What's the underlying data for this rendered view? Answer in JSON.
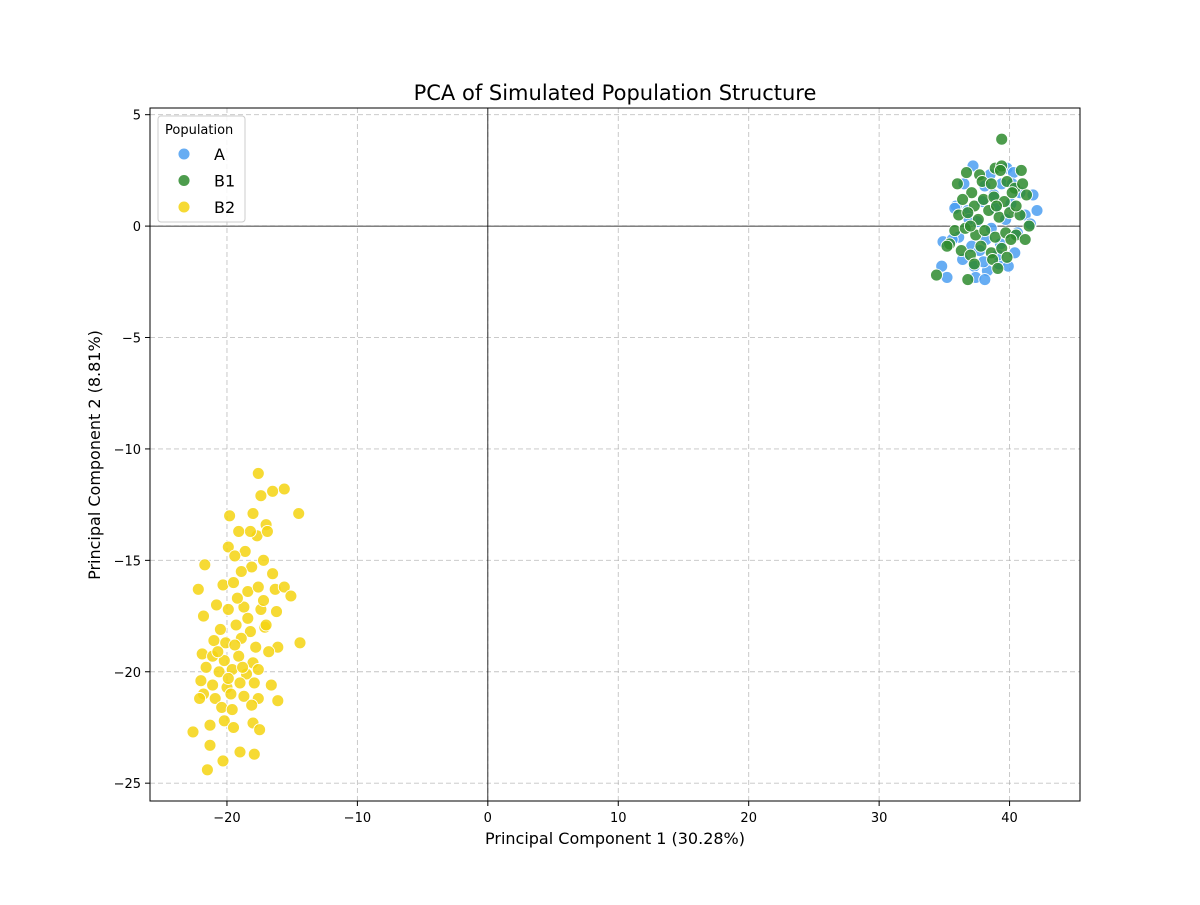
{
  "chart_data": {
    "type": "scatter",
    "title": "PCA of Simulated Population Structure",
    "xlabel": "Principal Component 1 (30.28%)",
    "ylabel": "Principal Component 2 (8.81%)",
    "xlim": [
      -25.9,
      45.4
    ],
    "ylim": [
      -25.8,
      5.3
    ],
    "xticks": [
      -20,
      -10,
      0,
      10,
      20,
      30,
      40
    ],
    "yticks": [
      5,
      0,
      -5,
      -10,
      -15,
      -20,
      -25
    ],
    "xtick_labels": [
      "−20",
      "−10",
      "0",
      "10",
      "20",
      "30",
      "40"
    ],
    "ytick_labels": [
      "5",
      "0",
      "−5",
      "−10",
      "−15",
      "−20",
      "−25"
    ],
    "grid": true,
    "zero_lines": true,
    "legend": {
      "title": "Population",
      "position": "top-left"
    },
    "series": [
      {
        "name": "A",
        "color": "#4c9ff1",
        "points": [
          [
            37.2,
            2.7
          ],
          [
            38.5,
            2.3
          ],
          [
            39.8,
            2.6
          ],
          [
            40.3,
            2.4
          ],
          [
            36.5,
            1.9
          ],
          [
            38.1,
            1.8
          ],
          [
            39.4,
            1.9
          ],
          [
            40.8,
            1.5
          ],
          [
            41.8,
            1.4
          ],
          [
            35.9,
            0.9
          ],
          [
            36.8,
            0.7
          ],
          [
            37.9,
            1.1
          ],
          [
            38.9,
            0.8
          ],
          [
            40.1,
            1.0
          ],
          [
            41.2,
            0.5
          ],
          [
            42.1,
            0.7
          ],
          [
            35.8,
            0.8
          ],
          [
            37.5,
            0.2
          ],
          [
            38.6,
            -0.1
          ],
          [
            39.7,
            0.3
          ],
          [
            40.6,
            -0.3
          ],
          [
            36.1,
            -0.5
          ],
          [
            37.1,
            -0.9
          ],
          [
            38.2,
            -0.6
          ],
          [
            39.3,
            -0.8
          ],
          [
            40.4,
            -1.2
          ],
          [
            34.9,
            -0.7
          ],
          [
            35.6,
            -0.6
          ],
          [
            36.4,
            -1.5
          ],
          [
            37.3,
            -1.8
          ],
          [
            38.3,
            -2.0
          ],
          [
            39.2,
            -1.7
          ],
          [
            39.9,
            -1.8
          ],
          [
            34.8,
            -1.8
          ],
          [
            35.2,
            -2.3
          ],
          [
            37.4,
            -2.3
          ],
          [
            38.1,
            -2.4
          ],
          [
            37.7,
            -1.1
          ],
          [
            38.8,
            1.4
          ],
          [
            40.2,
            1.9
          ],
          [
            41.6,
            0.1
          ],
          [
            36.9,
            0.3
          ],
          [
            39.1,
            -1.3
          ],
          [
            38.0,
            -1.6
          ]
        ]
      },
      {
        "name": "B1",
        "color": "#2e8b2e",
        "points": [
          [
            39.4,
            3.9
          ],
          [
            36.7,
            2.4
          ],
          [
            37.7,
            2.3
          ],
          [
            38.9,
            2.6
          ],
          [
            39.4,
            2.7
          ],
          [
            40.9,
            2.5
          ],
          [
            36.0,
            1.9
          ],
          [
            37.1,
            1.5
          ],
          [
            37.9,
            2.0
          ],
          [
            38.6,
            1.9
          ],
          [
            39.8,
            2.0
          ],
          [
            40.4,
            1.7
          ],
          [
            41.0,
            1.9
          ],
          [
            36.4,
            1.2
          ],
          [
            37.3,
            0.9
          ],
          [
            38.0,
            1.2
          ],
          [
            38.8,
            1.3
          ],
          [
            39.6,
            1.1
          ],
          [
            40.2,
            1.5
          ],
          [
            41.3,
            1.4
          ],
          [
            36.1,
            0.5
          ],
          [
            36.8,
            0.6
          ],
          [
            37.6,
            0.3
          ],
          [
            38.4,
            0.7
          ],
          [
            39.2,
            0.4
          ],
          [
            40.0,
            0.6
          ],
          [
            40.8,
            0.5
          ],
          [
            41.5,
            0.0
          ],
          [
            35.8,
            -0.2
          ],
          [
            36.6,
            -0.1
          ],
          [
            37.4,
            -0.4
          ],
          [
            38.1,
            -0.2
          ],
          [
            38.9,
            -0.5
          ],
          [
            39.7,
            -0.3
          ],
          [
            40.5,
            -0.4
          ],
          [
            41.2,
            -0.6
          ],
          [
            35.4,
            -0.8
          ],
          [
            36.3,
            -1.1
          ],
          [
            37.0,
            -1.3
          ],
          [
            37.8,
            -0.9
          ],
          [
            38.6,
            -1.2
          ],
          [
            39.4,
            -1.0
          ],
          [
            40.1,
            -0.6
          ],
          [
            34.4,
            -2.2
          ],
          [
            36.8,
            -2.4
          ],
          [
            37.3,
            -1.7
          ],
          [
            38.7,
            -1.5
          ],
          [
            39.1,
            -1.9
          ],
          [
            39.8,
            -1.4
          ],
          [
            35.2,
            -0.9
          ],
          [
            37.0,
            0.0
          ],
          [
            39.0,
            0.9
          ],
          [
            39.3,
            2.5
          ],
          [
            40.5,
            0.9
          ]
        ]
      },
      {
        "name": "B2",
        "color": "#f5d311",
        "points": [
          [
            -17.6,
            -11.1
          ],
          [
            -15.6,
            -11.8
          ],
          [
            -16.5,
            -11.9
          ],
          [
            -17.4,
            -12.1
          ],
          [
            -14.5,
            -12.9
          ],
          [
            -19.8,
            -13.0
          ],
          [
            -18.0,
            -12.9
          ],
          [
            -17.0,
            -13.4
          ],
          [
            -17.7,
            -13.9
          ],
          [
            -16.9,
            -13.7
          ],
          [
            -18.2,
            -13.7
          ],
          [
            -19.1,
            -13.7
          ],
          [
            -19.9,
            -14.4
          ],
          [
            -18.6,
            -14.6
          ],
          [
            -19.4,
            -14.8
          ],
          [
            -17.2,
            -15.0
          ],
          [
            -18.1,
            -15.3
          ],
          [
            -18.9,
            -15.5
          ],
          [
            -16.5,
            -15.6
          ],
          [
            -21.7,
            -15.2
          ],
          [
            -22.2,
            -16.3
          ],
          [
            -20.3,
            -16.1
          ],
          [
            -19.5,
            -16.0
          ],
          [
            -18.4,
            -16.4
          ],
          [
            -17.6,
            -16.2
          ],
          [
            -16.3,
            -16.3
          ],
          [
            -15.6,
            -16.2
          ],
          [
            -15.1,
            -16.6
          ],
          [
            -20.8,
            -17.0
          ],
          [
            -19.9,
            -17.2
          ],
          [
            -18.7,
            -17.1
          ],
          [
            -17.4,
            -17.2
          ],
          [
            -16.2,
            -17.3
          ],
          [
            -21.8,
            -17.5
          ],
          [
            -20.5,
            -18.1
          ],
          [
            -19.3,
            -17.9
          ],
          [
            -18.2,
            -18.2
          ],
          [
            -17.1,
            -18.0
          ],
          [
            -14.4,
            -18.7
          ],
          [
            -21.0,
            -18.6
          ],
          [
            -20.1,
            -18.7
          ],
          [
            -18.9,
            -18.5
          ],
          [
            -17.8,
            -18.9
          ],
          [
            -16.1,
            -18.9
          ],
          [
            -21.9,
            -19.2
          ],
          [
            -21.1,
            -19.3
          ],
          [
            -20.2,
            -19.5
          ],
          [
            -19.1,
            -19.3
          ],
          [
            -18.0,
            -19.6
          ],
          [
            -16.8,
            -19.1
          ],
          [
            -21.6,
            -19.8
          ],
          [
            -20.6,
            -20.0
          ],
          [
            -19.6,
            -19.9
          ],
          [
            -18.5,
            -20.1
          ],
          [
            -17.6,
            -19.9
          ],
          [
            -22.0,
            -20.4
          ],
          [
            -21.1,
            -20.6
          ],
          [
            -20.0,
            -20.7
          ],
          [
            -19.0,
            -20.5
          ],
          [
            -17.9,
            -20.5
          ],
          [
            -16.6,
            -20.6
          ],
          [
            -21.8,
            -21.0
          ],
          [
            -20.9,
            -21.2
          ],
          [
            -19.7,
            -21.0
          ],
          [
            -18.7,
            -21.1
          ],
          [
            -17.6,
            -21.2
          ],
          [
            -22.1,
            -21.2
          ],
          [
            -20.4,
            -21.6
          ],
          [
            -19.6,
            -21.7
          ],
          [
            -18.1,
            -21.5
          ],
          [
            -16.1,
            -21.3
          ],
          [
            -21.3,
            -22.4
          ],
          [
            -20.2,
            -22.2
          ],
          [
            -19.5,
            -22.5
          ],
          [
            -18.0,
            -22.3
          ],
          [
            -17.5,
            -22.6
          ],
          [
            -22.6,
            -22.7
          ],
          [
            -21.3,
            -23.3
          ],
          [
            -19.0,
            -23.6
          ],
          [
            -17.9,
            -23.7
          ],
          [
            -20.3,
            -24.0
          ],
          [
            -21.5,
            -24.4
          ],
          [
            -19.4,
            -18.8
          ],
          [
            -18.4,
            -17.6
          ],
          [
            -17.2,
            -16.8
          ],
          [
            -20.7,
            -19.1
          ],
          [
            -19.2,
            -16.7
          ],
          [
            -18.8,
            -19.8
          ],
          [
            -19.9,
            -20.3
          ],
          [
            -17.0,
            -17.9
          ]
        ]
      }
    ]
  }
}
